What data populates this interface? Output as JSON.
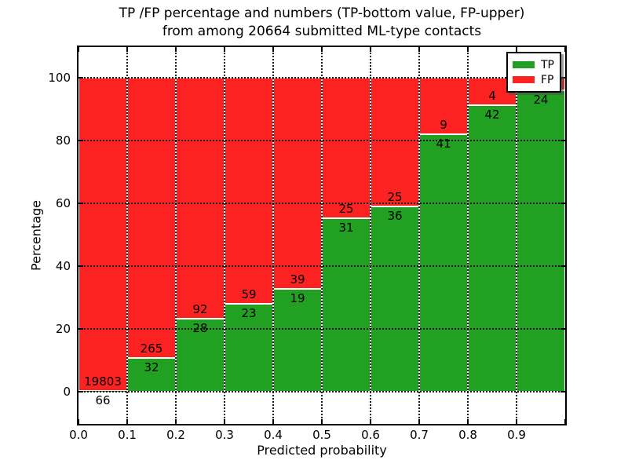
{
  "figure": {
    "title_line1": "TP /FP percentage and numbers (TP-bottom value, FP-upper)",
    "title_line2": "from among 20664 submitted ML-type contacts",
    "xlabel": "Predicted probability",
    "ylabel": "Percentage"
  },
  "legend": {
    "items": [
      {
        "label": "TP",
        "color": "#22a022"
      },
      {
        "label": "FP",
        "color": "#fc2222"
      }
    ]
  },
  "chart_data": {
    "type": "bar",
    "subtype": "stacked-percentage-histogram",
    "title": "TP /FP percentage and numbers (TP-bottom value, FP-upper) from among 20664 submitted ML-type contacts",
    "xlabel": "Predicted probability",
    "ylabel": "Percentage",
    "total_contacts": 20664,
    "grid": true,
    "legend_position": "upper right",
    "xlim": [
      0.0,
      1.0
    ],
    "ylim": [
      -10.25,
      109.75
    ],
    "x_ticks": [
      "0.0",
      "0.1",
      "0.2",
      "0.3",
      "0.4",
      "0.5",
      "0.6",
      "0.7",
      "0.8",
      "0.9"
    ],
    "y_ticks": [
      0,
      20,
      40,
      60,
      80,
      100
    ],
    "series_colors": {
      "TP": "#22a022",
      "FP": "#fc2222"
    },
    "series": [
      {
        "name": "TP",
        "role": "bottom-count-labels"
      },
      {
        "name": "FP",
        "role": "upper-count-labels"
      }
    ],
    "bins": [
      {
        "x0": 0.0,
        "x1": 0.1,
        "tp_count": 66,
        "fp_count": 19803,
        "tp_pct": 0.33,
        "fp_pct": 99.67
      },
      {
        "x0": 0.1,
        "x1": 0.2,
        "tp_count": 32,
        "fp_count": 265,
        "tp_pct": 10.77,
        "fp_pct": 89.23
      },
      {
        "x0": 0.2,
        "x1": 0.3,
        "tp_count": 28,
        "fp_count": 92,
        "tp_pct": 23.33,
        "fp_pct": 76.67
      },
      {
        "x0": 0.3,
        "x1": 0.4,
        "tp_count": 23,
        "fp_count": 59,
        "tp_pct": 28.05,
        "fp_pct": 71.95
      },
      {
        "x0": 0.4,
        "x1": 0.5,
        "tp_count": 19,
        "fp_count": 39,
        "tp_pct": 32.76,
        "fp_pct": 67.24
      },
      {
        "x0": 0.5,
        "x1": 0.6,
        "tp_count": 31,
        "fp_count": 25,
        "tp_pct": 55.36,
        "fp_pct": 44.64
      },
      {
        "x0": 0.6,
        "x1": 0.7,
        "tp_count": 36,
        "fp_count": 25,
        "tp_pct": 59.02,
        "fp_pct": 40.98
      },
      {
        "x0": 0.7,
        "x1": 0.8,
        "tp_count": 41,
        "fp_count": 9,
        "tp_pct": 82.0,
        "fp_pct": 18.0
      },
      {
        "x0": 0.8,
        "x1": 0.9,
        "tp_count": 42,
        "fp_count": 4,
        "tp_pct": 91.3,
        "fp_pct": 8.7
      },
      {
        "x0": 0.9,
        "x1": 1.0,
        "tp_count": 24,
        "fp_count": null,
        "tp_pct": 96.0,
        "fp_pct": 4.0,
        "fp_label_hidden_behind_legend": true
      }
    ]
  }
}
